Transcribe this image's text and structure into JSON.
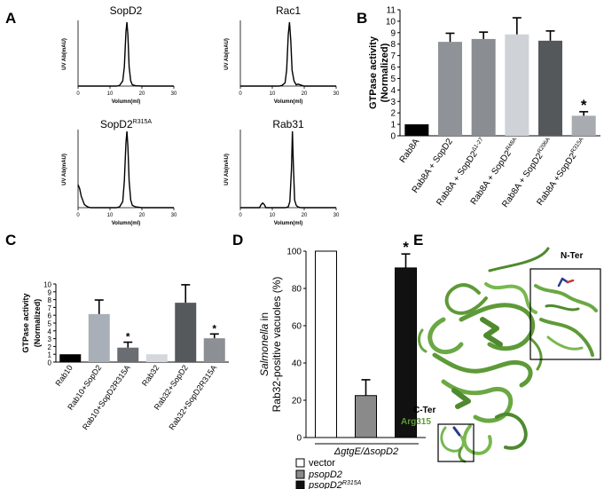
{
  "panel_labels": {
    "A": "A",
    "B": "B",
    "C": "C",
    "D": "D",
    "E": "E"
  },
  "panelA": {
    "ylabel": "UV Ab(mAU)",
    "xlabel": "Volumn(ml)",
    "xticks": [
      "0",
      "10",
      "20",
      "30"
    ]
  },
  "panelD_legend": {
    "vector": "vector",
    "psopD2": "psopD2",
    "psopD2R315A_base": "psopD2",
    "psopD2R315A_sup": "R315A"
  },
  "panelE": {
    "nter": "N-Ter",
    "cter": "C-Ter",
    "arg": "Arg315"
  },
  "chart_data": [
    {
      "panel": "A",
      "type": "line",
      "title": "SopD2",
      "x": [
        0,
        2,
        4,
        6,
        8,
        10,
        12,
        13,
        14,
        14.5,
        15,
        15.3,
        15.6,
        16,
        16.5,
        17,
        18,
        20,
        22,
        24,
        26,
        28,
        30
      ],
      "y": [
        0,
        0,
        0,
        0,
        0,
        0,
        0,
        1,
        8,
        30,
        85,
        100,
        80,
        30,
        8,
        2,
        0.5,
        0,
        0,
        0,
        0,
        0,
        0
      ],
      "xlim": [
        0,
        30
      ],
      "xticks": [
        0,
        10,
        20,
        30
      ],
      "xlabel": "Volumn(ml)",
      "ylabel": "UV Ab(mAU)"
    },
    {
      "panel": "A",
      "type": "line",
      "title": "Rac1",
      "x": [
        0,
        2,
        4,
        6,
        8,
        10,
        12,
        13,
        14,
        14.5,
        15,
        15.4,
        15.8,
        16.2,
        16.8,
        17.5,
        18,
        20,
        22,
        24,
        26,
        28,
        30
      ],
      "y": [
        0,
        0,
        0,
        0,
        0,
        0,
        0,
        1,
        5,
        25,
        80,
        100,
        70,
        25,
        8,
        2,
        3,
        0,
        0,
        0,
        0,
        0,
        0
      ],
      "xlim": [
        0,
        30
      ],
      "xticks": [
        0,
        10,
        20,
        30
      ],
      "xlabel": "Volumn(ml)",
      "ylabel": "UV Ab(mAU)"
    },
    {
      "panel": "A",
      "type": "line",
      "title": "SopD2",
      "title_sup": "R315A",
      "x": [
        0,
        0.5,
        1,
        2,
        3,
        4,
        6,
        8,
        10,
        12,
        13,
        14,
        14.5,
        15,
        15.3,
        15.6,
        16,
        16.5,
        17,
        18,
        20,
        25,
        30
      ],
      "y": [
        30,
        25,
        15,
        4,
        1,
        0,
        0,
        0,
        0,
        0,
        1,
        8,
        35,
        85,
        100,
        80,
        35,
        10,
        3,
        1,
        0,
        0,
        0
      ],
      "xlim": [
        0,
        30
      ],
      "xticks": [
        0,
        10,
        20,
        30
      ],
      "xlabel": "Volumn(ml)",
      "ylabel": "UV Ab(mAU)"
    },
    {
      "panel": "A",
      "type": "line",
      "title": "Rab31",
      "x": [
        0,
        4,
        6,
        6.5,
        7,
        7.5,
        8,
        10,
        12,
        14,
        15,
        15.5,
        16,
        16.3,
        16.6,
        17,
        17.5,
        18,
        19,
        20,
        22,
        26,
        30
      ],
      "y": [
        0,
        0,
        0,
        4,
        6,
        4,
        0,
        0,
        0,
        0,
        1,
        8,
        50,
        100,
        55,
        10,
        3,
        1,
        0,
        0,
        0,
        0,
        0
      ],
      "xlim": [
        0,
        30
      ],
      "xticks": [
        0,
        10,
        20,
        30
      ],
      "xlabel": "Volumn(ml)",
      "ylabel": "UV Ab(mAU)"
    },
    {
      "panel": "B",
      "type": "bar",
      "ylabel": "GTPase activity",
      "ylabel2": "(Normalized)",
      "ylim": [
        0,
        11
      ],
      "yticks": [
        0,
        1,
        2,
        3,
        4,
        5,
        6,
        7,
        8,
        9,
        10,
        11
      ],
      "categories": [
        {
          "base": "Rab8A",
          "sup": ""
        },
        {
          "base": "Rab8A + SopD2",
          "sup": ""
        },
        {
          "base": "Rab8A + SopD2",
          "sup": "Δ1-27"
        },
        {
          "base": "Rab8A + SopD2",
          "sup": "R48A"
        },
        {
          "base": "Rab8A + SopD2",
          "sup": "R206A"
        },
        {
          "base": "Rab8A +SopD2",
          "sup": "R315A"
        }
      ],
      "values": [
        1.0,
        8.2,
        8.45,
        8.85,
        8.3,
        1.75
      ],
      "errors": [
        0,
        0.75,
        0.6,
        1.45,
        0.85,
        0.35
      ],
      "colors": [
        "#000000",
        "#8f9297",
        "#8a8d91",
        "#cfd2d6",
        "#55585b",
        "#a8abb0"
      ],
      "annotations": [
        "",
        "",
        "",
        "",
        "",
        "*"
      ]
    },
    {
      "panel": "C",
      "type": "bar",
      "ylabel": "GTPase activity",
      "ylabel2": "(Normalized)",
      "ylim": [
        0,
        10
      ],
      "yticks": [
        0,
        1,
        2,
        3,
        4,
        5,
        6,
        7,
        8,
        9,
        10
      ],
      "categories": [
        "Rab10",
        "Rab10+SopD2",
        "Rab10+SopD2R315A",
        "Rab32",
        "Rab32+SopD2",
        "Rab32+SopD2R315A"
      ],
      "values": [
        1.0,
        6.15,
        1.85,
        1.0,
        7.6,
        3.05
      ],
      "errors": [
        0,
        1.8,
        0.7,
        0,
        2.3,
        0.55
      ],
      "colors": [
        "#000000",
        "#a9afb8",
        "#6a6d71",
        "#d4d7db",
        "#56595c",
        "#8c8f94"
      ],
      "annotations": [
        "",
        "",
        "*",
        "",
        "",
        "*"
      ]
    },
    {
      "panel": "D",
      "type": "bar",
      "ylabel_italic": "Salmonella",
      "ylabel_rest": " in",
      "ylabel2": "Rab32-positive vacuoles (%)",
      "ylim": [
        0,
        100
      ],
      "yticks": [
        0,
        20,
        40,
        60,
        80,
        100
      ],
      "xlabel": "ΔgtgE/ΔsopD2",
      "series": [
        {
          "name": "vector",
          "value": 100,
          "error": 0,
          "color": "#ffffff"
        },
        {
          "name": "psopD2",
          "value": 22.5,
          "error": 8.5,
          "color": "#8a8a8a"
        },
        {
          "name": "psopD2R315A",
          "value": 91,
          "error": 7.5,
          "color": "#111111"
        }
      ],
      "annotations": [
        "",
        "",
        "*"
      ]
    }
  ]
}
